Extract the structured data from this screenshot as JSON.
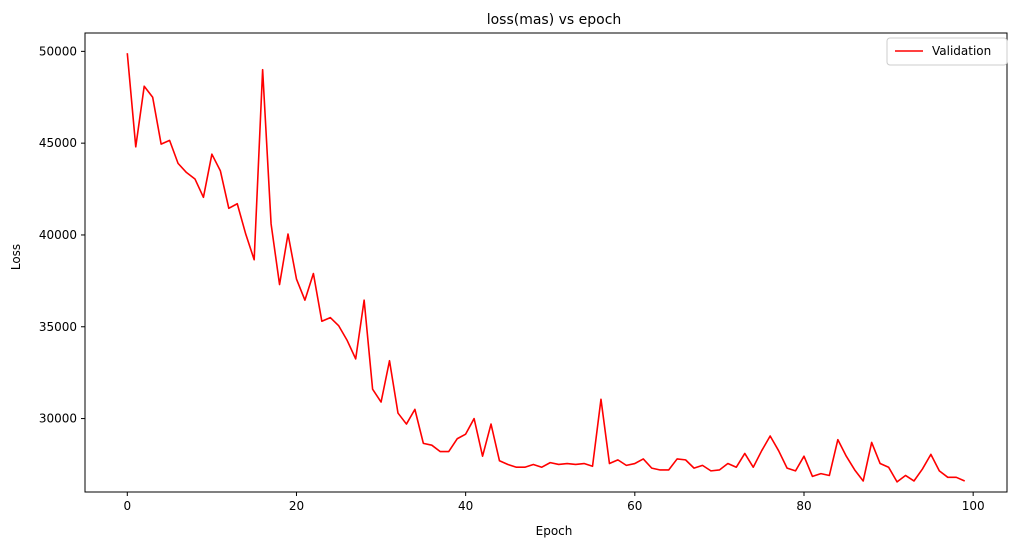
{
  "chart_data": {
    "type": "line",
    "title": "loss(mas) vs epoch",
    "xlabel": "Epoch",
    "ylabel": "Loss",
    "xlim": [
      -5,
      104
    ],
    "ylim": [
      26000,
      51000
    ],
    "xticks": [
      0,
      20,
      40,
      60,
      80,
      100
    ],
    "yticks": [
      30000,
      35000,
      40000,
      45000,
      50000
    ],
    "grid": false,
    "legend_position": "top-right",
    "series": [
      {
        "name": "Validation",
        "color": "#ff0000",
        "x": [
          0,
          1,
          2,
          3,
          4,
          5,
          6,
          7,
          8,
          9,
          10,
          11,
          12,
          13,
          14,
          15,
          16,
          17,
          18,
          19,
          20,
          21,
          22,
          23,
          24,
          25,
          26,
          27,
          28,
          29,
          30,
          31,
          32,
          33,
          34,
          35,
          36,
          37,
          38,
          39,
          40,
          41,
          42,
          43,
          44,
          45,
          46,
          47,
          48,
          49,
          50,
          51,
          52,
          53,
          54,
          55,
          56,
          57,
          58,
          59,
          60,
          61,
          62,
          63,
          64,
          65,
          66,
          67,
          68,
          69,
          70,
          71,
          72,
          73,
          74,
          75,
          76,
          77,
          78,
          79,
          80,
          81,
          82,
          83,
          84,
          85,
          86,
          87,
          88,
          89,
          90,
          91,
          92,
          93,
          94,
          95,
          96,
          97,
          98,
          99
        ],
        "values": [
          49900,
          44800,
          48100,
          47500,
          44950,
          45150,
          43900,
          43400,
          43050,
          42050,
          44400,
          43500,
          41450,
          41700,
          40050,
          38650,
          49000,
          40600,
          37300,
          40050,
          37600,
          36450,
          37900,
          35300,
          35500,
          35050,
          34250,
          33250,
          36450,
          31600,
          30900,
          33150,
          30300,
          29700,
          30500,
          28650,
          28550,
          28200,
          28200,
          28900,
          29150,
          30000,
          27950,
          29700,
          27700,
          27500,
          27350,
          27350,
          27500,
          27350,
          27600,
          27500,
          27550,
          27500,
          27550,
          27400,
          31050,
          27550,
          27750,
          27450,
          27550,
          27800,
          27300,
          27200,
          27200,
          27800,
          27750,
          27300,
          27450,
          27150,
          27200,
          27550,
          27350,
          28100,
          27350,
          28250,
          29050,
          28250,
          27300,
          27150,
          27950,
          26850,
          27000,
          26900,
          28850,
          27950,
          27200,
          26600,
          28700,
          27550,
          27350,
          26550,
          26900,
          26600,
          27250,
          28050,
          27150,
          26800,
          26800,
          26600
        ]
      }
    ]
  }
}
